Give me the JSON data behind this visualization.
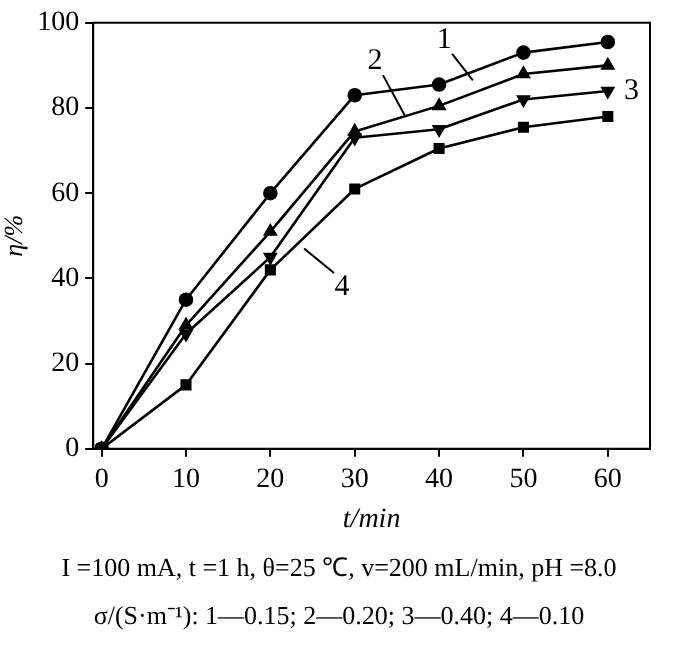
{
  "chart_data": {
    "type": "line",
    "xlabel": "t/min",
    "ylabel": "η/%",
    "x": [
      0,
      10,
      20,
      30,
      40,
      50,
      60
    ],
    "xlim": [
      -1,
      65
    ],
    "xticks": [
      0,
      10,
      20,
      30,
      40,
      50,
      60
    ],
    "ylim": [
      0,
      100
    ],
    "yticks": [
      0,
      20,
      40,
      60,
      80,
      100
    ],
    "grid": false,
    "legend": "top right",
    "line_style": "solid",
    "series": [
      {
        "name": "1",
        "color": "#000000",
        "marker": "circle",
        "values": [
          0,
          35,
          60,
          83,
          85.5,
          93,
          95.5
        ]
      },
      {
        "name": "2",
        "color": "#000000",
        "marker": "triangle",
        "values": [
          0,
          29,
          51,
          74.5,
          80.5,
          88,
          90
        ]
      },
      {
        "name": "3",
        "color": "#000000",
        "marker": "triangle_down",
        "values": [
          0,
          27,
          45,
          73,
          75,
          82,
          84
        ]
      },
      {
        "name": "4",
        "color": "#000000",
        "marker": "square",
        "values": [
          0,
          15,
          42,
          61,
          70.5,
          75.5,
          78
        ]
      }
    ],
    "annotations": [
      "I =100 mA, t =1 h, θ=25 ℃, v=200 mL/min, pH =8.0",
      "σ/(S·m⁻¹): 1—0.15; 2—0.20; 3—0.40; 4—0.10"
    ]
  }
}
